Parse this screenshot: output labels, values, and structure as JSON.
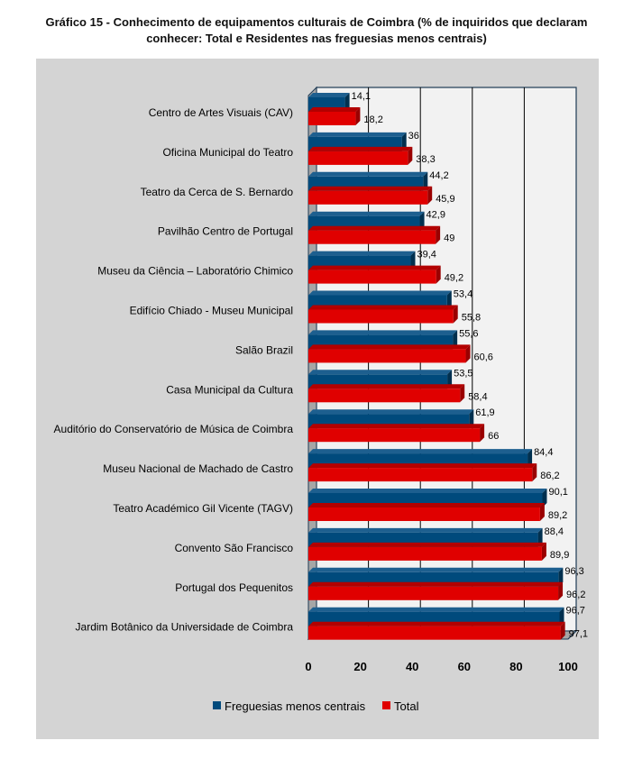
{
  "chart_data": {
    "type": "bar",
    "orientation": "horizontal",
    "title": "Gráfico 15 - Conhecimento de equipamentos culturais de Coimbra (% de inquiridos que declaram conhecer: Total e Residentes nas freguesias menos centrais)",
    "title_lines": [
      "Gráfico 15 - Conhecimento de equipamentos culturais de Coimbra (% de inquiridos que declaram",
      "conhecer: Total e Residentes nas freguesias menos centrais)"
    ],
    "categories": [
      "Centro de Artes Visuais (CAV)",
      "Oficina Municipal do Teatro",
      "Teatro da Cerca de S. Bernardo",
      "Pavilhão Centro de Portugal",
      "Museu da Ciência – Laboratório Chimico",
      "Edifício Chiado - Museu Municipal",
      "Salão Brazil",
      "Casa Municipal da Cultura",
      "Auditório do Conservatório de Música de Coimbra",
      "Museu Nacional de Machado de Castro",
      "Teatro Académico Gil Vicente (TAGV)",
      "Convento São Francisco",
      "Portugal dos Pequenitos",
      "Jardim Botânico da Universidade de Coimbra"
    ],
    "series": [
      {
        "name": "Freguesias menos centrais",
        "color": "#004a7c",
        "values": [
          14.1,
          36,
          44.2,
          42.9,
          39.4,
          53.4,
          55.6,
          53.5,
          61.9,
          84.4,
          90.1,
          88.4,
          96.3,
          96.7
        ],
        "labels": [
          "14,1",
          "36",
          "44,2",
          "42,9",
          "39,4",
          "53,4",
          "55,6",
          "53,5",
          "61,9",
          "84,4",
          "90,1",
          "88,4",
          "96,3",
          "96,7"
        ]
      },
      {
        "name": "Total",
        "color": "#e00000",
        "values": [
          18.2,
          38.3,
          45.9,
          49,
          49.2,
          55.8,
          60.6,
          58.4,
          66,
          86.2,
          89.2,
          89.9,
          96.2,
          97.1
        ],
        "labels": [
          "18,2",
          "38,3",
          "45,9",
          "49",
          "49,2",
          "55,8",
          "60,6",
          "58,4",
          "66",
          "86,2",
          "89,2",
          "89,9",
          "96,2",
          "97,1"
        ]
      }
    ],
    "xlim": [
      0,
      100
    ],
    "xticks": [
      "0",
      "20",
      "40",
      "60",
      "80",
      "100"
    ],
    "grid": true,
    "legend": "bottom"
  }
}
